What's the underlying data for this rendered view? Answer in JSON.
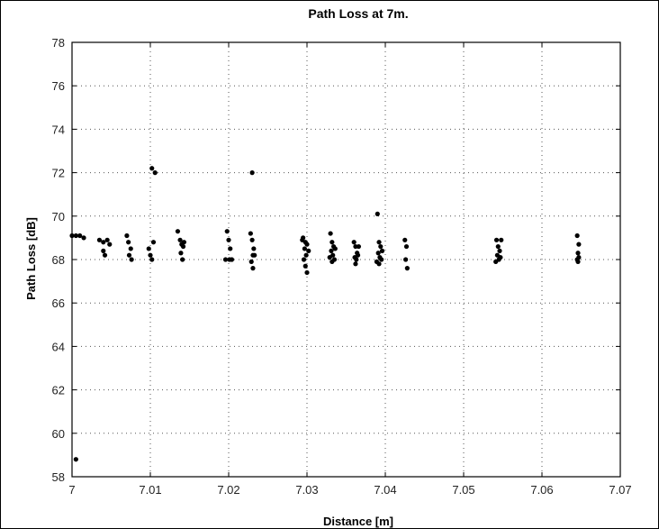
{
  "chart_data": {
    "type": "scatter",
    "title": "Path Loss at 7m.",
    "xlabel": "Distance [m]",
    "ylabel": "Path Loss [dB]",
    "xlim": [
      7.0,
      7.07
    ],
    "ylim": [
      58,
      78
    ],
    "xticks": [
      7.0,
      7.01,
      7.02,
      7.03,
      7.04,
      7.05,
      7.06,
      7.07
    ],
    "xtick_labels": [
      "7",
      "7.01",
      "7.02",
      "7.03",
      "7.04",
      "7.05",
      "7.06",
      "7.07"
    ],
    "yticks": [
      58,
      60,
      62,
      64,
      66,
      68,
      70,
      72,
      74,
      76,
      78
    ],
    "ytick_labels": [
      "58",
      "60",
      "62",
      "64",
      "66",
      "68",
      "70",
      "72",
      "74",
      "76",
      "78"
    ],
    "grid": true,
    "series": [
      {
        "marker_color": "#000000",
        "points": [
          [
            7.0,
            69.1
          ],
          [
            7.0005,
            69.1
          ],
          [
            7.001,
            69.1
          ],
          [
            7.0015,
            69.0
          ],
          [
            7.0005,
            58.8
          ],
          [
            7.0035,
            68.9
          ],
          [
            7.004,
            68.8
          ],
          [
            7.0045,
            68.9
          ],
          [
            7.004,
            68.4
          ],
          [
            7.0042,
            68.2
          ],
          [
            7.0048,
            68.7
          ],
          [
            7.007,
            69.1
          ],
          [
            7.0072,
            68.8
          ],
          [
            7.0075,
            68.5
          ],
          [
            7.0073,
            68.2
          ],
          [
            7.0076,
            68.0
          ],
          [
            7.0098,
            68.5
          ],
          [
            7.01,
            68.2
          ],
          [
            7.0102,
            68.0
          ],
          [
            7.0104,
            68.8
          ],
          [
            7.0102,
            72.2
          ],
          [
            7.0106,
            72.0
          ],
          [
            7.0135,
            69.3
          ],
          [
            7.0138,
            68.9
          ],
          [
            7.014,
            68.7
          ],
          [
            7.0142,
            68.6
          ],
          [
            7.0139,
            68.3
          ],
          [
            7.0141,
            68.0
          ],
          [
            7.0143,
            68.8
          ],
          [
            7.0198,
            69.3
          ],
          [
            7.02,
            68.9
          ],
          [
            7.0202,
            68.5
          ],
          [
            7.0201,
            68.0
          ],
          [
            7.0204,
            68.0
          ],
          [
            7.0196,
            68.0
          ],
          [
            7.0228,
            69.2
          ],
          [
            7.023,
            68.9
          ],
          [
            7.0232,
            68.5
          ],
          [
            7.0231,
            68.2
          ],
          [
            7.0229,
            67.9
          ],
          [
            7.0233,
            68.2
          ],
          [
            7.0231,
            67.6
          ],
          [
            7.023,
            72.0
          ],
          [
            7.0295,
            69.0
          ],
          [
            7.0298,
            68.8
          ],
          [
            7.03,
            68.7
          ],
          [
            7.0297,
            68.5
          ],
          [
            7.0299,
            68.2
          ],
          [
            7.0296,
            68.0
          ],
          [
            7.0298,
            67.7
          ],
          [
            7.03,
            67.4
          ],
          [
            7.0294,
            68.9
          ],
          [
            7.0302,
            68.4
          ],
          [
            7.033,
            69.2
          ],
          [
            7.0332,
            68.8
          ],
          [
            7.0334,
            68.6
          ],
          [
            7.0331,
            68.4
          ],
          [
            7.0333,
            68.2
          ],
          [
            7.0335,
            68.0
          ],
          [
            7.0329,
            68.1
          ],
          [
            7.0336,
            68.5
          ],
          [
            7.0332,
            67.9
          ],
          [
            7.036,
            68.8
          ],
          [
            7.0362,
            68.6
          ],
          [
            7.0364,
            68.3
          ],
          [
            7.0361,
            68.1
          ],
          [
            7.0363,
            68.0
          ],
          [
            7.0365,
            68.2
          ],
          [
            7.0362,
            67.8
          ],
          [
            7.0366,
            68.6
          ],
          [
            7.039,
            70.1
          ],
          [
            7.0392,
            68.8
          ],
          [
            7.0394,
            68.6
          ],
          [
            7.0391,
            68.3
          ],
          [
            7.0393,
            68.1
          ],
          [
            7.0395,
            68.0
          ],
          [
            7.0389,
            67.9
          ],
          [
            7.0396,
            68.4
          ],
          [
            7.0392,
            67.8
          ],
          [
            7.0425,
            68.9
          ],
          [
            7.0427,
            68.6
          ],
          [
            7.0426,
            68.0
          ],
          [
            7.0428,
            67.6
          ],
          [
            7.0542,
            68.9
          ],
          [
            7.0544,
            68.6
          ],
          [
            7.0546,
            68.4
          ],
          [
            7.0543,
            68.2
          ],
          [
            7.0545,
            68.0
          ],
          [
            7.0547,
            68.1
          ],
          [
            7.0541,
            67.9
          ],
          [
            7.0548,
            68.9
          ],
          [
            7.0645,
            69.1
          ],
          [
            7.0647,
            68.7
          ],
          [
            7.0646,
            68.3
          ],
          [
            7.0645,
            68.0
          ],
          [
            7.0647,
            68.1
          ],
          [
            7.0646,
            67.9
          ]
        ]
      }
    ]
  }
}
